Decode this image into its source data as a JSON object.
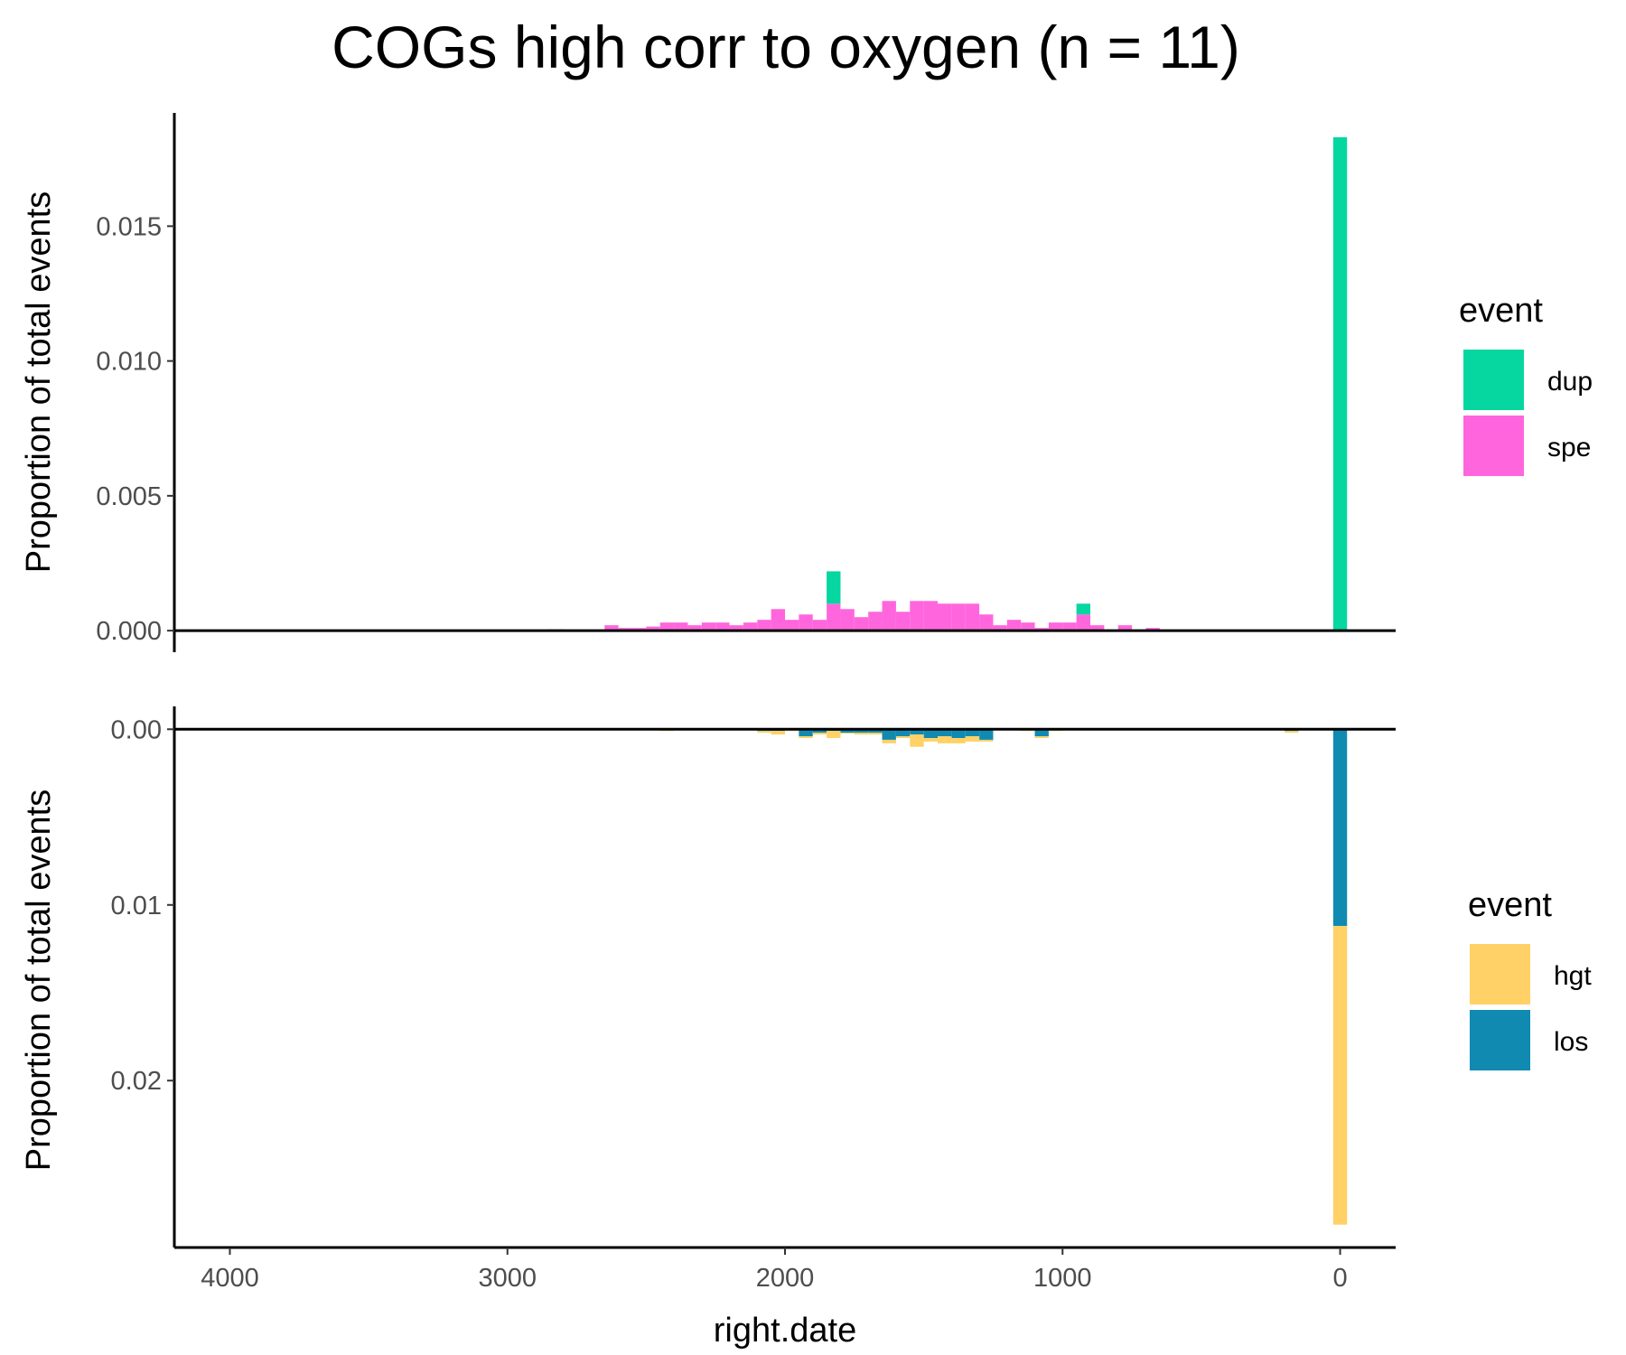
{
  "chart_data": {
    "type": "bar",
    "title": "COGs high corr to oxygen (n = 11)",
    "xlabel": "right.date",
    "x_reversed": true,
    "xlim": [
      4200,
      -200
    ],
    "xticks": [
      4000,
      3000,
      2000,
      1000,
      0
    ],
    "bin_width": 50,
    "panels": [
      {
        "ylabel": "Proportion of total events",
        "ylim": [
          -0.0008,
          0.0192
        ],
        "yticks": [
          "0.000",
          "0.005",
          "0.010",
          "0.015"
        ],
        "ytick_values": [
          0,
          0.005,
          0.01,
          0.015
        ],
        "legend_title": "event",
        "series": [
          {
            "name": "dup",
            "color": "#06D6A0",
            "x": [
              1825,
              925,
              0
            ],
            "values": [
              0.0012,
              0.0004,
              0.0183
            ]
          },
          {
            "name": "spe",
            "color": "#FF66DD",
            "x": [
              2825,
              2625,
              2575,
              2525,
              2475,
              2425,
              2375,
              2325,
              2275,
              2225,
              2175,
              2125,
              2075,
              2025,
              1975,
              1925,
              1875,
              1825,
              1775,
              1725,
              1675,
              1625,
              1575,
              1525,
              1475,
              1425,
              1375,
              1325,
              1275,
              1225,
              1175,
              1125,
              1075,
              1025,
              975,
              925,
              875,
              825,
              775,
              725,
              675
            ],
            "values": [
              5e-05,
              0.0002,
              0.0001,
              0.0001,
              0.00015,
              0.0003,
              0.0003,
              0.0002,
              0.0003,
              0.0003,
              0.0002,
              0.0003,
              0.0004,
              0.0008,
              0.0004,
              0.0006,
              0.0004,
              0.001,
              0.0008,
              0.0005,
              0.0007,
              0.0011,
              0.0007,
              0.0011,
              0.0011,
              0.001,
              0.001,
              0.001,
              0.0006,
              0.0002,
              0.0004,
              0.0003,
              0.0001,
              0.0003,
              0.0003,
              0.0006,
              0.0002,
              0.0,
              0.0002,
              0.0,
              0.0001
            ]
          }
        ]
      },
      {
        "ylabel": "Proportion of total events",
        "ylim": [
          -0.0013,
          0.0295
        ],
        "yticks": [
          "0.00",
          "0.01",
          "0.02"
        ],
        "ytick_values": [
          0,
          0.01,
          0.02
        ],
        "legend_title": "event",
        "series": [
          {
            "name": "hgt",
            "color": "#FFD166",
            "x": [
              2425,
              2075,
              2025,
              1975,
              1925,
              1875,
              1825,
              1775,
              1725,
              1675,
              1625,
              1575,
              1525,
              1475,
              1425,
              1375,
              1325,
              1275,
              1125,
              1075,
              1025,
              175,
              0
            ],
            "values": [
              0.0001,
              0.0001,
              0.0002,
              0.0001,
              0.0001,
              0.0001,
              0.0004,
              5e-05,
              0.0001,
              0.0001,
              0.0002,
              0.0001,
              0.0007,
              0.0002,
              0.0004,
              0.0003,
              0.0003,
              0.0001,
              0.0001,
              0.0001,
              0.0001,
              0.0001,
              0.017
            ]
          },
          {
            "name": "los",
            "color": "#118AB2",
            "x": [
              2075,
              2025,
              1925,
              1875,
              1825,
              1775,
              1725,
              1675,
              1625,
              1575,
              1525,
              1475,
              1425,
              1375,
              1325,
              1275,
              1075,
              175,
              0
            ],
            "values": [
              0.0001,
              0.0001,
              0.0004,
              0.0002,
              0.0001,
              0.0002,
              0.0002,
              0.0002,
              0.0006,
              0.0004,
              0.0003,
              0.0005,
              0.0004,
              0.0005,
              0.0004,
              0.0006,
              0.0004,
              0.0001,
              0.0112
            ]
          }
        ]
      }
    ]
  }
}
